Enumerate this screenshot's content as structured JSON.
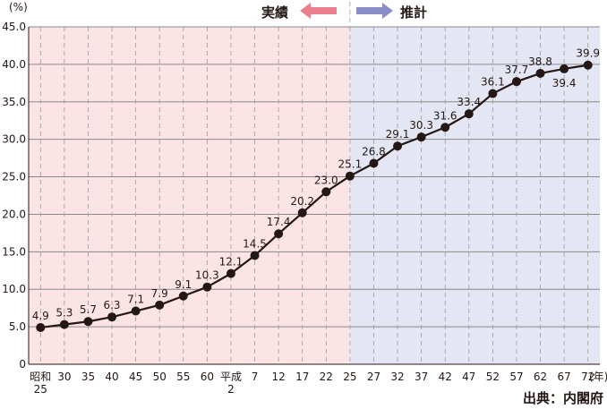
{
  "chart_data": {
    "type": "line",
    "y_unit_label": "(%)",
    "x_unit_label": "(年)",
    "actual_label": "実績",
    "projection_label": "推計",
    "source": "出典：内閣府",
    "ylim": [
      0,
      45
    ],
    "yticks": [
      "0",
      "5.0",
      "10.0",
      "15.0",
      "20.0",
      "25.0",
      "30.0",
      "35.0",
      "40.0",
      "45.0"
    ],
    "grid": true,
    "categories": [
      [
        "昭和",
        "25"
      ],
      [
        "30"
      ],
      [
        "35"
      ],
      [
        "40"
      ],
      [
        "45"
      ],
      [
        "50"
      ],
      [
        "55"
      ],
      [
        "60"
      ],
      [
        "平成",
        "2"
      ],
      [
        "7"
      ],
      [
        "12"
      ],
      [
        "17"
      ],
      [
        "22"
      ],
      [
        "25"
      ],
      [
        "27"
      ],
      [
        "32"
      ],
      [
        "37"
      ],
      [
        "42"
      ],
      [
        "47"
      ],
      [
        "52"
      ],
      [
        "57"
      ],
      [
        "62"
      ],
      [
        "67"
      ],
      [
        "72"
      ]
    ],
    "values": [
      4.9,
      5.3,
      5.7,
      6.3,
      7.1,
      7.9,
      9.1,
      10.3,
      12.1,
      14.5,
      17.4,
      20.2,
      23.0,
      25.1,
      26.8,
      29.1,
      30.3,
      31.6,
      33.4,
      36.1,
      37.7,
      38.8,
      39.4,
      39.9
    ],
    "value_labels": [
      "4.9",
      "5.3",
      "5.7",
      "6.3",
      "7.1",
      "7.9",
      "9.1",
      "10.3",
      "12.1",
      "14.5",
      "17.4",
      "20.2",
      "23.0",
      "25.1",
      "26.8",
      "29.1",
      "30.3",
      "31.6",
      "33.4",
      "36.1",
      "37.7",
      "38.8",
      "39.4",
      "39.9"
    ],
    "actual_region_end_index": 13,
    "colors": {
      "actual_bg": "#fbe3e6",
      "projection_bg": "#e4e6f3",
      "line": "#231815",
      "actual_arrow": "#ec7f8e",
      "projection_arrow": "#8b8fc9"
    }
  }
}
